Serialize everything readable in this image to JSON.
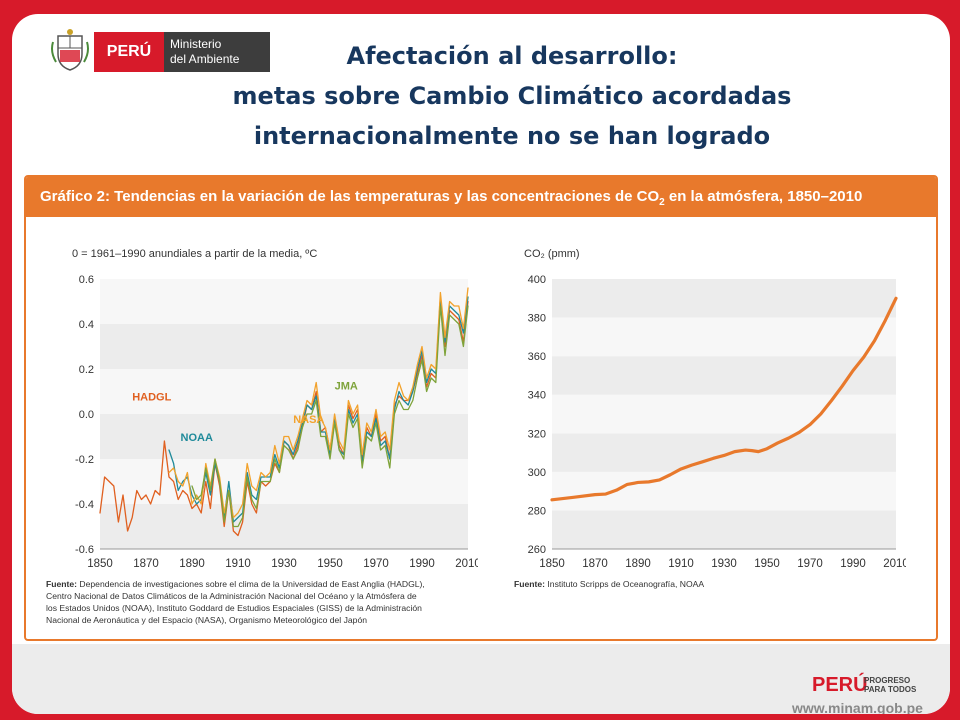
{
  "header": {
    "title_lines": [
      "Afectación al desarrollo:",
      "metas sobre Cambio Climático acordadas",
      "internacionalmente no se han logrado"
    ],
    "logo_country": "PERÚ",
    "logo_ministry_lines": [
      "Ministerio",
      "del Ambiente"
    ]
  },
  "figure": {
    "title_main": "Gráfico 2: Tendencias en la variación de las temperaturas y las concentraciones de CO",
    "title_sub": "2",
    "title_end": " en la atmósfera, 1850–2010",
    "header_color": "#e8792c"
  },
  "chart_data": [
    {
      "type": "line",
      "ylabel": "0 = 1961–1990 anundiales a partir de la media, ºC",
      "xlim": [
        1850,
        2010
      ],
      "ylim": [
        -0.6,
        0.6
      ],
      "x_ticks": [
        1850,
        1870,
        1890,
        1910,
        1930,
        1950,
        1970,
        1990,
        2010
      ],
      "y_ticks": [
        -0.6,
        -0.4,
        -0.2,
        0.0,
        0.2,
        0.4,
        0.6
      ],
      "y_tick_labels": [
        "-0.6",
        "-0.4",
        "-0.2",
        "0.0",
        "0.2",
        "0.4",
        "0.6"
      ],
      "background": "banded",
      "annotations": [
        {
          "text": "HADGL",
          "color": "#e06020",
          "x": 1864,
          "y": 0.06
        },
        {
          "text": "NOAA",
          "color": "#1f8a9a",
          "x": 1885,
          "y": -0.12
        },
        {
          "text": "NASA",
          "color": "#f2a22c",
          "x": 1934,
          "y": -0.04
        },
        {
          "text": "JMA",
          "color": "#7ea33a",
          "x": 1952,
          "y": 0.11
        }
      ],
      "series": [
        {
          "name": "HADGL",
          "color": "#e06020",
          "x": [
            1850,
            1852,
            1854,
            1856,
            1858,
            1860,
            1862,
            1864,
            1866,
            1868,
            1870,
            1872,
            1874,
            1876,
            1878,
            1880,
            1882,
            1884,
            1886,
            1888,
            1890,
            1892,
            1894,
            1896,
            1898,
            1900,
            1902,
            1904,
            1906,
            1908,
            1910,
            1912,
            1914,
            1916,
            1918,
            1920,
            1922,
            1924,
            1926,
            1928,
            1930,
            1932,
            1934,
            1936,
            1938,
            1940,
            1942,
            1944,
            1946,
            1948,
            1950,
            1952,
            1954,
            1956,
            1958,
            1960,
            1962,
            1964,
            1966,
            1968,
            1970,
            1972,
            1974,
            1976,
            1978,
            1980,
            1982,
            1984,
            1986,
            1988,
            1990,
            1992,
            1994,
            1996,
            1998,
            2000,
            2002,
            2004,
            2006,
            2008,
            2010
          ],
          "values": [
            -0.44,
            -0.28,
            -0.3,
            -0.32,
            -0.48,
            -0.36,
            -0.52,
            -0.46,
            -0.34,
            -0.38,
            -0.36,
            -0.4,
            -0.34,
            -0.36,
            -0.12,
            -0.28,
            -0.3,
            -0.38,
            -0.34,
            -0.36,
            -0.42,
            -0.4,
            -0.44,
            -0.3,
            -0.42,
            -0.22,
            -0.32,
            -0.5,
            -0.34,
            -0.52,
            -0.54,
            -0.48,
            -0.3,
            -0.4,
            -0.44,
            -0.3,
            -0.32,
            -0.3,
            -0.22,
            -0.26,
            -0.12,
            -0.14,
            -0.2,
            -0.14,
            -0.06,
            0.04,
            0.02,
            0.1,
            -0.08,
            -0.06,
            -0.16,
            -0.02,
            -0.14,
            -0.18,
            0.04,
            -0.02,
            0.02,
            -0.2,
            -0.06,
            -0.1,
            0.0,
            -0.12,
            -0.1,
            -0.2,
            0.04,
            0.08,
            0.06,
            0.06,
            0.1,
            0.18,
            0.26,
            0.12,
            0.18,
            0.16,
            0.52,
            0.3,
            0.46,
            0.44,
            0.42,
            0.32,
            0.5
          ]
        },
        {
          "name": "NOAA",
          "color": "#1f8a9a",
          "x": [
            1880,
            1882,
            1884,
            1886,
            1888,
            1890,
            1892,
            1894,
            1896,
            1898,
            1900,
            1902,
            1904,
            1906,
            1908,
            1910,
            1912,
            1914,
            1916,
            1918,
            1920,
            1922,
            1924,
            1926,
            1928,
            1930,
            1932,
            1934,
            1936,
            1938,
            1940,
            1942,
            1944,
            1946,
            1948,
            1950,
            1952,
            1954,
            1956,
            1958,
            1960,
            1962,
            1964,
            1966,
            1968,
            1970,
            1972,
            1974,
            1976,
            1978,
            1980,
            1982,
            1984,
            1986,
            1988,
            1990,
            1992,
            1994,
            1996,
            1998,
            2000,
            2002,
            2004,
            2006,
            2008,
            2010
          ],
          "values": [
            -0.16,
            -0.22,
            -0.34,
            -0.3,
            -0.28,
            -0.36,
            -0.4,
            -0.38,
            -0.26,
            -0.36,
            -0.22,
            -0.3,
            -0.46,
            -0.3,
            -0.48,
            -0.46,
            -0.44,
            -0.26,
            -0.36,
            -0.38,
            -0.28,
            -0.28,
            -0.28,
            -0.18,
            -0.24,
            -0.12,
            -0.14,
            -0.18,
            -0.12,
            -0.04,
            0.04,
            0.02,
            0.08,
            -0.08,
            -0.08,
            -0.18,
            -0.02,
            -0.16,
            -0.18,
            0.02,
            -0.04,
            0.0,
            -0.22,
            -0.08,
            -0.1,
            -0.02,
            -0.14,
            -0.12,
            -0.2,
            0.02,
            0.1,
            0.06,
            0.04,
            0.1,
            0.2,
            0.28,
            0.14,
            0.2,
            0.18,
            0.52,
            0.32,
            0.48,
            0.46,
            0.44,
            0.36,
            0.52
          ]
        },
        {
          "name": "NASA",
          "color": "#f2a22c",
          "x": [
            1880,
            1882,
            1884,
            1886,
            1888,
            1890,
            1892,
            1894,
            1896,
            1898,
            1900,
            1902,
            1904,
            1906,
            1908,
            1910,
            1912,
            1914,
            1916,
            1918,
            1920,
            1922,
            1924,
            1926,
            1928,
            1930,
            1932,
            1934,
            1936,
            1938,
            1940,
            1942,
            1944,
            1946,
            1948,
            1950,
            1952,
            1954,
            1956,
            1958,
            1960,
            1962,
            1964,
            1966,
            1968,
            1970,
            1972,
            1974,
            1976,
            1978,
            1980,
            1982,
            1984,
            1986,
            1988,
            1990,
            1992,
            1994,
            1996,
            1998,
            2000,
            2002,
            2004,
            2006,
            2008,
            2010
          ],
          "values": [
            -0.26,
            -0.24,
            -0.3,
            -0.32,
            -0.26,
            -0.4,
            -0.36,
            -0.4,
            -0.22,
            -0.32,
            -0.2,
            -0.28,
            -0.44,
            -0.34,
            -0.46,
            -0.44,
            -0.4,
            -0.22,
            -0.32,
            -0.34,
            -0.26,
            -0.28,
            -0.26,
            -0.14,
            -0.22,
            -0.1,
            -0.1,
            -0.16,
            -0.1,
            -0.02,
            0.06,
            0.04,
            0.14,
            -0.02,
            -0.06,
            -0.16,
            0.0,
            -0.12,
            -0.16,
            0.06,
            0.0,
            0.04,
            -0.18,
            -0.04,
            -0.08,
            0.02,
            -0.1,
            -0.08,
            -0.16,
            0.06,
            0.14,
            0.08,
            0.06,
            0.12,
            0.22,
            0.3,
            0.16,
            0.22,
            0.2,
            0.54,
            0.34,
            0.5,
            0.48,
            0.48,
            0.38,
            0.56
          ]
        },
        {
          "name": "JMA",
          "color": "#7ea33a",
          "x": [
            1890,
            1892,
            1894,
            1896,
            1898,
            1900,
            1902,
            1904,
            1906,
            1908,
            1910,
            1912,
            1914,
            1916,
            1918,
            1920,
            1922,
            1924,
            1926,
            1928,
            1930,
            1932,
            1934,
            1936,
            1938,
            1940,
            1942,
            1944,
            1946,
            1948,
            1950,
            1952,
            1954,
            1956,
            1958,
            1960,
            1962,
            1964,
            1966,
            1968,
            1970,
            1972,
            1974,
            1976,
            1978,
            1980,
            1982,
            1984,
            1986,
            1988,
            1990,
            1992,
            1994,
            1996,
            1998,
            2000,
            2002,
            2004,
            2006,
            2008,
            2010
          ],
          "values": [
            -0.32,
            -0.38,
            -0.36,
            -0.24,
            -0.34,
            -0.2,
            -0.3,
            -0.48,
            -0.34,
            -0.5,
            -0.5,
            -0.46,
            -0.28,
            -0.38,
            -0.42,
            -0.3,
            -0.3,
            -0.3,
            -0.2,
            -0.26,
            -0.14,
            -0.16,
            -0.2,
            -0.16,
            -0.06,
            0.0,
            0.0,
            0.06,
            -0.1,
            -0.1,
            -0.2,
            -0.04,
            -0.16,
            -0.2,
            0.0,
            -0.06,
            -0.02,
            -0.24,
            -0.1,
            -0.12,
            -0.04,
            -0.16,
            -0.14,
            -0.24,
            0.0,
            0.06,
            0.02,
            0.02,
            0.06,
            0.16,
            0.24,
            0.1,
            0.16,
            0.14,
            0.48,
            0.26,
            0.44,
            0.42,
            0.4,
            0.3,
            0.48
          ]
        }
      ],
      "source_label": "Fuente:",
      "source_lines": [
        "Dependencia de investigaciones sobre el clima de la Universidad de East Anglia (HADGL),",
        "Centro Nacional de Datos Climáticos de la Administración Nacional del Océano y la Atmósfera de",
        "los Estados Unidos (NOAA), Instituto Goddard de Estudios Espaciales (GISS) de la Administración",
        "Nacional de Aeronáutica y del Espacio (NASA), Organismo Meteorológico del Japón"
      ]
    },
    {
      "type": "line",
      "ylabel": "CO₂ (pmm)",
      "xlim": [
        1850,
        2010
      ],
      "ylim": [
        260,
        400
      ],
      "x_ticks": [
        1850,
        1870,
        1890,
        1910,
        1930,
        1950,
        1970,
        1990,
        2010
      ],
      "y_ticks": [
        260,
        280,
        300,
        320,
        340,
        360,
        380,
        400
      ],
      "y_tick_labels": [
        "260",
        "280",
        "300",
        "320",
        "340",
        "360",
        "380",
        "400"
      ],
      "background": "banded",
      "series": [
        {
          "color": "#e8792c",
          "x": [
            1850,
            1860,
            1870,
            1875,
            1880,
            1885,
            1890,
            1895,
            1900,
            1905,
            1910,
            1915,
            1920,
            1925,
            1930,
            1935,
            1940,
            1943,
            1946,
            1950,
            1955,
            1960,
            1965,
            1970,
            1975,
            1980,
            1985,
            1990,
            1995,
            2000,
            2005,
            2010
          ],
          "values": [
            285.5,
            286.8,
            288.2,
            288.5,
            290.5,
            293.5,
            294.5,
            294.8,
            295.8,
            298.5,
            301.5,
            303.5,
            305.2,
            307.0,
            308.5,
            310.5,
            311.3,
            311.0,
            310.5,
            312.0,
            315.0,
            317.5,
            320.5,
            324.5,
            330.0,
            337.0,
            344.5,
            352.5,
            359.5,
            368.0,
            378.5,
            390.0
          ]
        }
      ],
      "source_label": "Fuente:",
      "source_lines": [
        "Instituto Scripps de Oceanografía, NOAA"
      ]
    }
  ],
  "footer": {
    "brand": "PERÚ",
    "slogan_lines": [
      "PROGRESO",
      "PARA TODOS"
    ],
    "url": "www.minam.gob.pe"
  }
}
